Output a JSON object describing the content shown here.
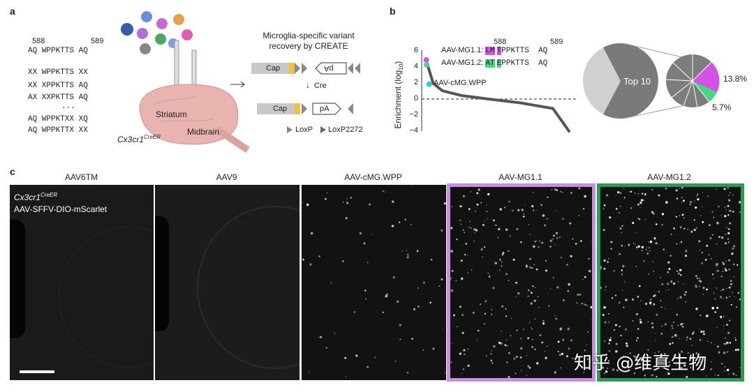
{
  "panel_a": {
    "label": "a",
    "pos_left": "588",
    "pos_right": "589",
    "sequences": [
      "AQ WPPKTTS AQ",
      "XX WPPKTTS XX",
      "XX XPPKTTS AQ",
      "AX XXPKTTS AQ",
      "...",
      "AQ WPPKTXX XQ",
      "AQ WPPKTTX XX"
    ],
    "brain_striatum": "Striatum",
    "brain_midbrain": "Midbrain",
    "mouse_line": "Cx3cr1",
    "mouse_line_sup": "CreER",
    "create_title_1": "Microglia-specific variant",
    "create_title_2": "recovery by CREATE",
    "cap": "Cap",
    "pa": "pA",
    "cre": "Cre",
    "loxp": "LoxP",
    "loxp2272": "LoxP2272"
  },
  "panel_b": {
    "label": "b",
    "ylabel": "Enrichment (log",
    "ylabel_sub": "10",
    "ylabel_end": ")",
    "yticks": [
      "6",
      "4",
      "2",
      "0",
      "−2",
      "−4"
    ],
    "pos_left": "588",
    "pos_right": "589",
    "mg11_name": "AAV-MG1.1:",
    "mg11_hl1": "LM",
    "mg11_hl2": "T",
    "mg11_rest": "PPKTTS  AQ",
    "mg12_name": "AAV-MG1.2:",
    "mg12_hl1": "AT",
    "mg12_hl2": "E",
    "mg12_rest": "PPKTTS  AQ",
    "cmg_label": "AAV-cMG.WPP",
    "pie_top10": "Top 10",
    "pct_mg11": "13.8%",
    "pct_mg12": "5.7%"
  },
  "panel_c": {
    "label": "c",
    "titles": [
      "AAV6TM",
      "AAV9",
      "AAV-cMG.WPP",
      "AAV-MG1.1",
      "AAV-MG1.2"
    ],
    "overlay_line": "Cx3cr1",
    "overlay_sup": "CreER",
    "overlay_line2": "AAV-SFFV-DIO-mScarlet"
  },
  "watermark": "知乎 @维真生物",
  "colors": {
    "mg11": "#d452e6",
    "mg12": "#48d680",
    "cmg": "#2ec8d8",
    "magenta_border": "#c98ee0",
    "green_border": "#2a9a55"
  },
  "chart_data": [
    {
      "type": "scatter",
      "title": "",
      "xlabel": "",
      "ylabel": "Enrichment (log10)",
      "ylim": [
        -4,
        6
      ],
      "yticks": [
        6,
        4,
        2,
        0,
        -2,
        -4
      ],
      "highlighted": [
        {
          "name": "AAV-MG1.1",
          "rank": 1,
          "y": 4.8
        },
        {
          "name": "AAV-MG1.2",
          "rank": 2,
          "y": 4.2
        },
        {
          "name": "AAV-cMG.WPP",
          "rank": 8,
          "y": 1.8
        }
      ],
      "curve": {
        "x": [
          0,
          3,
          10,
          30,
          80,
          150,
          250,
          350,
          400
        ],
        "y": [
          4.8,
          3.5,
          1.9,
          1.0,
          0.4,
          0.0,
          -0.5,
          -1.2,
          -4.0
        ]
      }
    },
    {
      "type": "pie",
      "slices": [
        {
          "label": "Top 10",
          "value": 60
        },
        {
          "label": "",
          "value": 40
        }
      ]
    },
    {
      "type": "pie",
      "slices": [
        {
          "label": "13.8%",
          "value": 13.8
        },
        {
          "label": "5.7%",
          "value": 5.7
        }
      ]
    }
  ]
}
